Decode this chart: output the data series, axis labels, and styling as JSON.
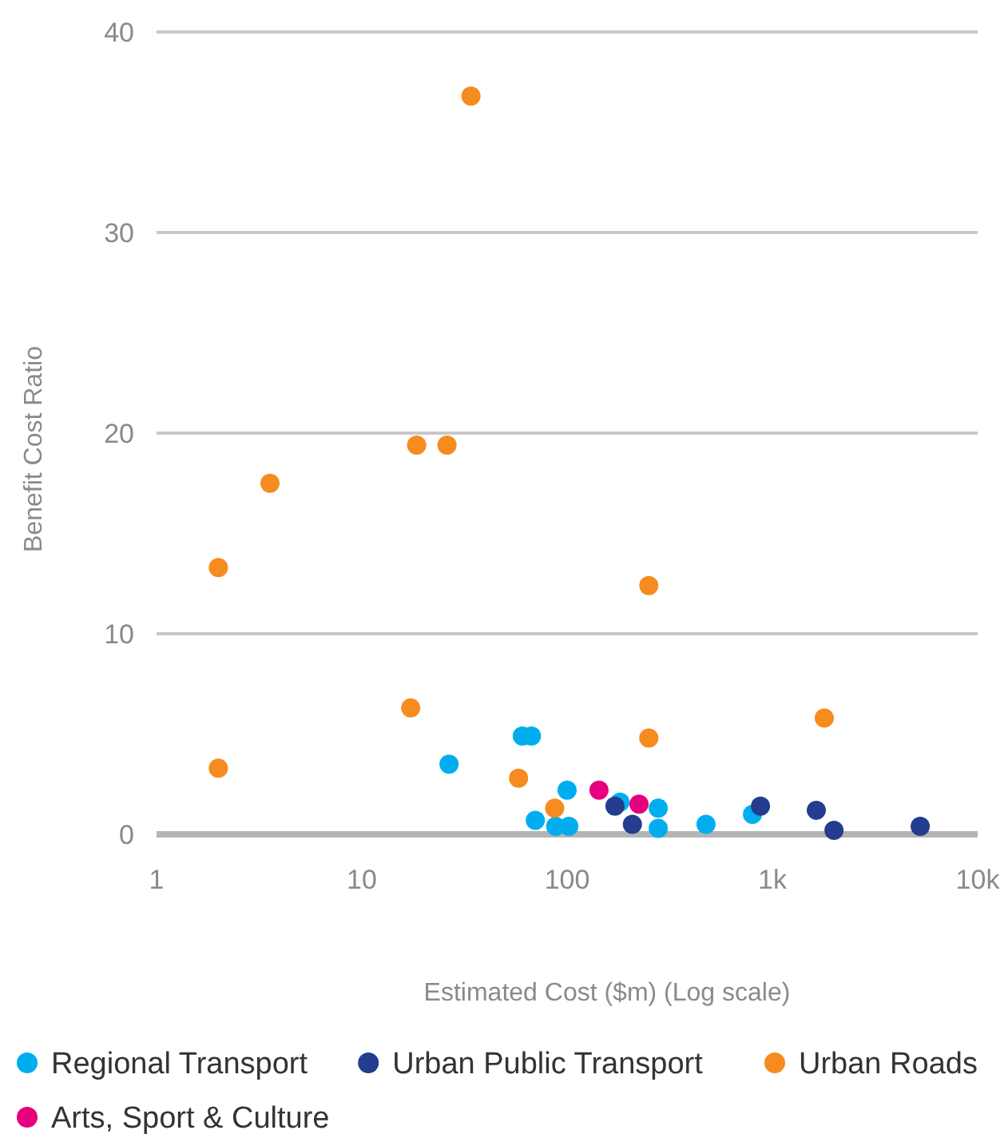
{
  "chart_data": {
    "type": "scatter",
    "xlabel": "Estimated Cost ($m) (Log scale)",
    "ylabel": "Benefit Cost Ratio",
    "log": "x",
    "xlim": [
      1,
      10000
    ],
    "xticks": [
      1,
      10,
      100,
      {
        "value": 1000,
        "label": "1k"
      },
      {
        "value": 10000,
        "label": "10k"
      }
    ],
    "ylim": [
      0,
      40
    ],
    "yticks": [
      0,
      10,
      20,
      30,
      40
    ],
    "grid": "y",
    "legend": "bottom",
    "marker": "circle",
    "series": [
      {
        "name": "Regional Transport",
        "color": "#00aeef",
        "x": [
          26.6,
          60.5,
          67,
          100,
          70,
          88,
          102,
          181,
          278,
          278,
          475,
          800
        ],
        "values": [
          3.5,
          4.9,
          4.9,
          2.2,
          0.7,
          0.4,
          0.4,
          1.6,
          1.3,
          0.3,
          0.5,
          1.0
        ]
      },
      {
        "name": "Urban Public Transport",
        "color": "#233d8f",
        "x": [
          171,
          208,
          875,
          1637,
          1996,
          5250
        ],
        "values": [
          1.4,
          0.5,
          1.4,
          1.2,
          0.2,
          0.4
        ]
      },
      {
        "name": "Urban Roads",
        "color": "#f68b1f",
        "x": [
          2,
          2,
          3.57,
          18.5,
          26,
          34,
          17.3,
          58,
          87,
          250,
          250,
          1790
        ],
        "values": [
          3.3,
          13.3,
          17.5,
          19.4,
          19.4,
          36.8,
          6.3,
          2.8,
          1.3,
          4.8,
          12.4,
          5.8
        ]
      },
      {
        "name": "Arts, Sport & Culture",
        "color": "#e6007e",
        "x": [
          143,
          224
        ],
        "values": [
          2.2,
          1.5
        ]
      }
    ]
  }
}
